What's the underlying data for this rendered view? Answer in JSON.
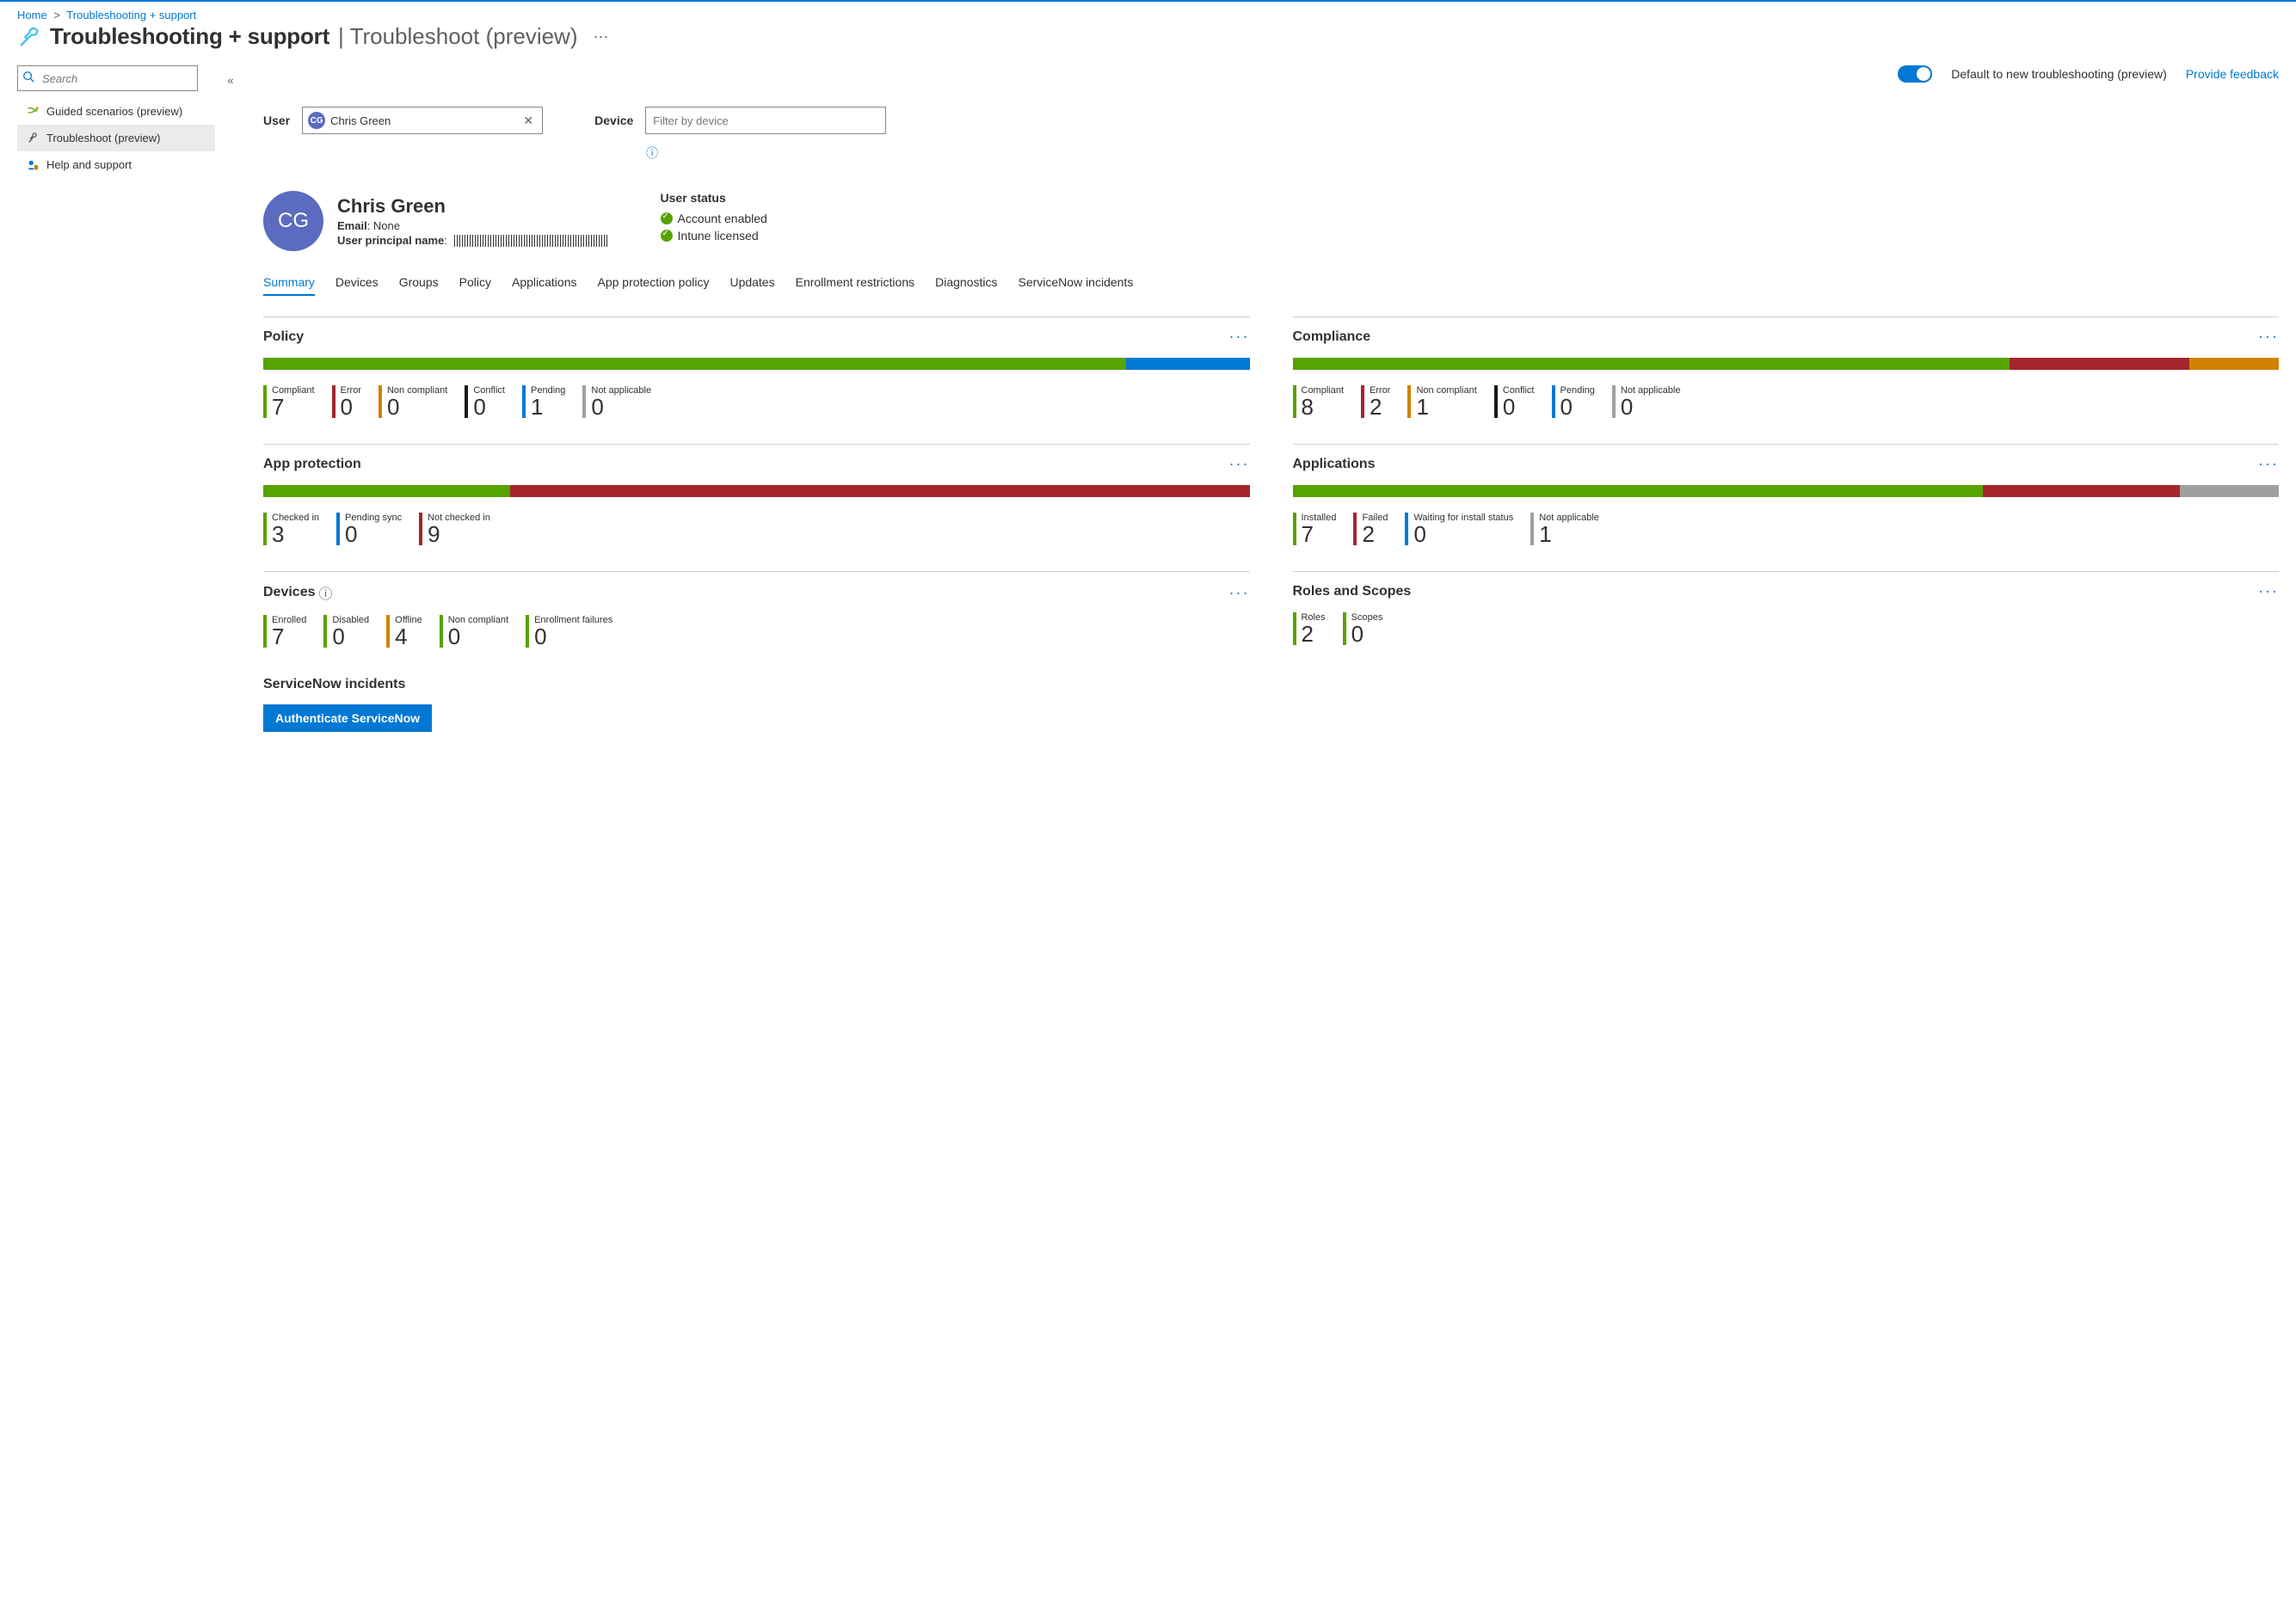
{
  "breadcrumb": {
    "home": "Home",
    "current": "Troubleshooting + support"
  },
  "page": {
    "title_strong": "Troubleshooting + support",
    "title_light": "Troubleshoot (preview)",
    "search_placeholder": "Search",
    "collapse_glyph": "«",
    "overflow_glyph": "···"
  },
  "nav": {
    "items": [
      {
        "label": "Guided scenarios (preview)"
      },
      {
        "label": "Troubleshoot (preview)"
      },
      {
        "label": "Help and support"
      }
    ]
  },
  "topbar": {
    "toggle_label": "Default to new troubleshooting (preview)",
    "feedback": "Provide feedback"
  },
  "filters": {
    "user_label": "User",
    "device_label": "Device",
    "user_chip_initials": "CG",
    "user_chip_name": "Chris Green",
    "device_placeholder": "Filter by device"
  },
  "user": {
    "initials": "CG",
    "name": "Chris Green",
    "email_label": "Email",
    "email_value": "None",
    "upn_label": "User principal name"
  },
  "status": {
    "title": "User status",
    "lines": [
      "Account enabled",
      "Intune licensed"
    ]
  },
  "tabs": [
    "Summary",
    "Devices",
    "Groups",
    "Policy",
    "Applications",
    "App protection policy",
    "Updates",
    "Enrollment restrictions",
    "Diagnostics",
    "ServiceNow incidents"
  ],
  "tabs_selected_index": 0,
  "colors": {
    "green": "#57a300",
    "red": "#a4262c",
    "orange": "#d08100",
    "black": "#1b1a19",
    "blue": "#0078d4",
    "grey": "#a19f9d"
  },
  "cards": {
    "policy": {
      "title": "Policy",
      "bar": [
        {
          "colorKey": "green",
          "grow": 7
        },
        {
          "colorKey": "blue",
          "grow": 1
        }
      ],
      "stats": [
        {
          "label": "Compliant",
          "value": "7",
          "colorKey": "green"
        },
        {
          "label": "Error",
          "value": "0",
          "colorKey": "red"
        },
        {
          "label": "Non compliant",
          "value": "0",
          "colorKey": "orange"
        },
        {
          "label": "Conflict",
          "value": "0",
          "colorKey": "black"
        },
        {
          "label": "Pending",
          "value": "1",
          "colorKey": "blue"
        },
        {
          "label": "Not applicable",
          "value": "0",
          "colorKey": "grey"
        }
      ]
    },
    "compliance": {
      "title": "Compliance",
      "bar": [
        {
          "colorKey": "green",
          "grow": 8
        },
        {
          "colorKey": "red",
          "grow": 2
        },
        {
          "colorKey": "orange",
          "grow": 1
        }
      ],
      "stats": [
        {
          "label": "Compliant",
          "value": "8",
          "colorKey": "green"
        },
        {
          "label": "Error",
          "value": "2",
          "colorKey": "red"
        },
        {
          "label": "Non compliant",
          "value": "1",
          "colorKey": "orange"
        },
        {
          "label": "Conflict",
          "value": "0",
          "colorKey": "black"
        },
        {
          "label": "Pending",
          "value": "0",
          "colorKey": "blue"
        },
        {
          "label": "Not applicable",
          "value": "0",
          "colorKey": "grey"
        }
      ]
    },
    "app_protection": {
      "title": "App protection",
      "bar": [
        {
          "colorKey": "green",
          "grow": 3
        },
        {
          "colorKey": "red",
          "grow": 9
        }
      ],
      "stats": [
        {
          "label": "Checked in",
          "value": "3",
          "colorKey": "green"
        },
        {
          "label": "Pending sync",
          "value": "0",
          "colorKey": "blue"
        },
        {
          "label": "Not checked in",
          "value": "9",
          "colorKey": "red"
        }
      ]
    },
    "applications": {
      "title": "Applications",
      "bar": [
        {
          "colorKey": "green",
          "grow": 7
        },
        {
          "colorKey": "red",
          "grow": 2
        },
        {
          "colorKey": "grey",
          "grow": 1
        }
      ],
      "stats": [
        {
          "label": "Installed",
          "value": "7",
          "colorKey": "green"
        },
        {
          "label": "Failed",
          "value": "2",
          "colorKey": "red"
        },
        {
          "label": "Waiting for install status",
          "value": "0",
          "colorKey": "blue"
        },
        {
          "label": "Not applicable",
          "value": "1",
          "colorKey": "grey"
        }
      ]
    },
    "devices": {
      "title": "Devices",
      "has_info": true,
      "bar": null,
      "stats": [
        {
          "label": "Enrolled",
          "value": "7",
          "colorKey": "green"
        },
        {
          "label": "Disabled",
          "value": "0",
          "colorKey": "green"
        },
        {
          "label": "Offline",
          "value": "4",
          "colorKey": "orange"
        },
        {
          "label": "Non compliant",
          "value": "0",
          "colorKey": "green"
        },
        {
          "label": "Enrollment failures",
          "value": "0",
          "colorKey": "green"
        }
      ]
    },
    "roles_scopes": {
      "title": "Roles and Scopes",
      "bar": null,
      "stats": [
        {
          "label": "Roles",
          "value": "2",
          "colorKey": "green"
        },
        {
          "label": "Scopes",
          "value": "0",
          "colorKey": "green"
        }
      ]
    }
  },
  "servicenow": {
    "title": "ServiceNow incidents",
    "button": "Authenticate ServiceNow"
  }
}
